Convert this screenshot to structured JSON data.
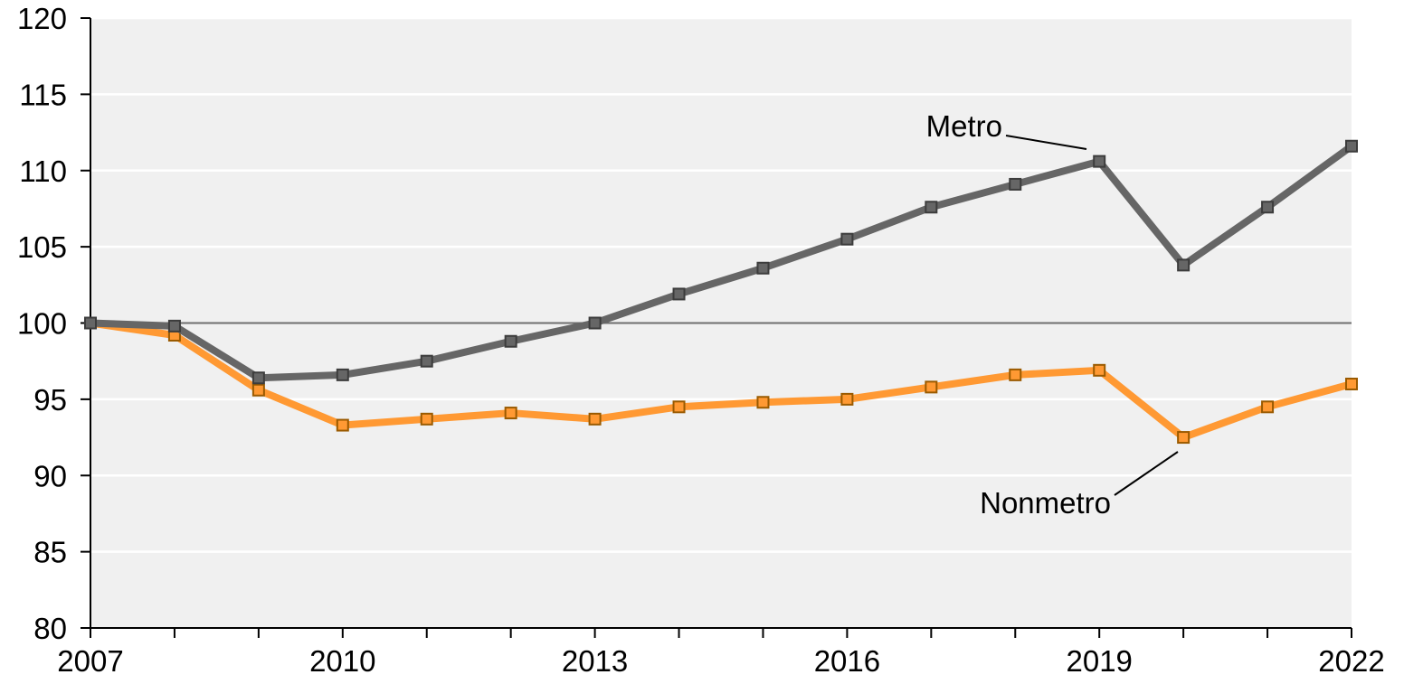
{
  "chart_data": {
    "type": "line",
    "title": "",
    "xlabel": "",
    "ylabel": "",
    "xlim": [
      2007,
      2022
    ],
    "ylim": [
      80,
      120
    ],
    "x_ticks": [
      2007,
      2010,
      2013,
      2016,
      2019,
      2022
    ],
    "x_minor_ticks": [
      2007,
      2008,
      2009,
      2010,
      2011,
      2012,
      2013,
      2014,
      2015,
      2016,
      2017,
      2018,
      2019,
      2020,
      2021,
      2022
    ],
    "y_ticks": [
      80,
      85,
      90,
      95,
      100,
      105,
      110,
      115,
      120
    ],
    "grid": "horizontal",
    "reference_line": 100,
    "background": "#f0f0f0",
    "x": [
      2007,
      2008,
      2009,
      2010,
      2011,
      2012,
      2013,
      2014,
      2015,
      2016,
      2017,
      2018,
      2019,
      2020,
      2021,
      2022
    ],
    "series": [
      {
        "name": "Metro",
        "color": "#666666",
        "values": [
          100.0,
          99.8,
          96.4,
          96.6,
          97.5,
          98.8,
          100.0,
          101.9,
          103.6,
          105.5,
          107.6,
          109.1,
          110.6,
          103.8,
          107.6,
          111.6
        ]
      },
      {
        "name": "Nonmetro",
        "color": "#ff9933",
        "values": [
          100.0,
          99.2,
          95.6,
          93.3,
          93.7,
          94.1,
          93.7,
          94.5,
          94.8,
          95.0,
          95.8,
          96.6,
          96.9,
          92.5,
          94.5,
          96.0
        ]
      }
    ]
  }
}
